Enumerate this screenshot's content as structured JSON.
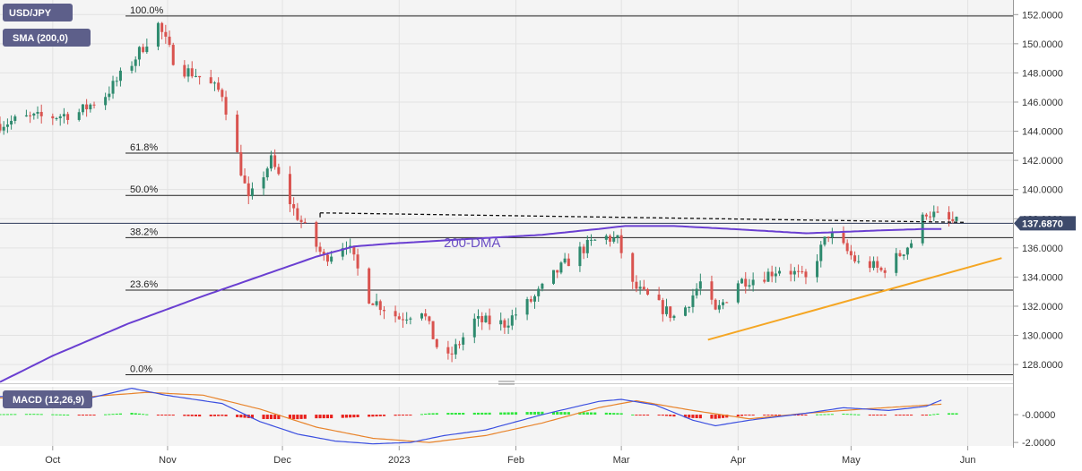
{
  "colors": {
    "bull": "#2e8a6e",
    "bear": "#d9534f",
    "sma": "#6a3fd1",
    "trend": "#f5a623",
    "fib": "#222222",
    "macd_line": "#3b4fe0",
    "signal_line": "#e8832a",
    "hist_pos": "#2ee63c",
    "hist_neg": "#e8201c",
    "badge": "#5d5f8a",
    "price_tag": "#3d4a6b",
    "panel_bg": "#f4f4f4"
  },
  "badges": {
    "symbol": "USD/JPY",
    "sma": "SMA (200,0)",
    "macd": "MACD (12,26,9)"
  },
  "price_tag": "137.6870",
  "dma_label": "200-DMA",
  "chart_data": [
    {
      "type": "candlestick",
      "y_ticks": [
        "152.0000",
        "150.0000",
        "148.0000",
        "146.0000",
        "144.0000",
        "142.0000",
        "140.0000",
        "138.0000",
        "136.0000",
        "134.0000",
        "132.0000",
        "130.0000",
        "128.0000"
      ],
      "y_tick_values": [
        152,
        150,
        148,
        146,
        144,
        142,
        140,
        138,
        136,
        134,
        132,
        130,
        128
      ],
      "ylim": [
        126.9,
        153.0
      ],
      "x_months": [
        "Oct",
        "Nov",
        "Dec",
        "2023",
        "Feb",
        "Mar",
        "Apr",
        "May",
        "Jun"
      ],
      "x_month_days": [
        0,
        30.5,
        61,
        92,
        123,
        151,
        182,
        212,
        243
      ],
      "xlim": [
        -14,
        255
      ],
      "fib_levels": [
        {
          "label": "100.0%",
          "value": 151.9
        },
        {
          "label": "61.8%",
          "value": 142.5
        },
        {
          "label": "50.0%",
          "value": 139.6
        },
        {
          "label": "38.2%",
          "value": 136.7
        },
        {
          "label": "23.6%",
          "value": 133.1
        },
        {
          "label": "0.0%",
          "value": 127.3
        }
      ],
      "current_price": 137.687,
      "resistance": {
        "from_day": 71,
        "from": 138.4,
        "to_day": 242,
        "to": 137.75
      },
      "support_trend": {
        "from_day": 174,
        "from": 129.7,
        "to_day": 252,
        "to": 135.3
      },
      "price_path_days": [
        -14,
        -7,
        0,
        7,
        14,
        21,
        28,
        33,
        38,
        45,
        52,
        58,
        64,
        72,
        78,
        84,
        92,
        98,
        104,
        112,
        120,
        128,
        134,
        140,
        146,
        150,
        154,
        160,
        166,
        172,
        176,
        182,
        188,
        194,
        200,
        206,
        210,
        214,
        216,
        220,
        224,
        228,
        232,
        236,
        240
      ],
      "price_path_values": [
        144.5,
        144.9,
        145.0,
        145.3,
        146.5,
        148.7,
        151.3,
        148.4,
        147.9,
        146.6,
        139.2,
        142.0,
        138.6,
        135.3,
        136.4,
        132.6,
        131.2,
        131.8,
        128.0,
        131.0,
        130.8,
        132.6,
        134.4,
        135.8,
        136.8,
        136.5,
        133.4,
        132.2,
        131.1,
        133.6,
        131.5,
        133.7,
        134.0,
        134.7,
        133.8,
        137.0,
        136.0,
        134.9,
        135.0,
        134.4,
        135.3,
        136.4,
        138.5,
        138.0,
        137.69
      ],
      "sma_days": [
        -14,
        0,
        20,
        40,
        60,
        70,
        80,
        90,
        110,
        130,
        145,
        152,
        165,
        180,
        200,
        220,
        232,
        236
      ],
      "sma_values": [
        126.8,
        128.6,
        130.8,
        132.7,
        134.5,
        135.4,
        136.1,
        136.3,
        136.6,
        136.9,
        137.3,
        137.5,
        137.5,
        137.3,
        137.0,
        137.2,
        137.3,
        137.3
      ]
    },
    {
      "type": "macd",
      "y_ticks": [
        "-0.0000",
        "-2.0000"
      ],
      "y_tick_values": [
        0,
        -2
      ],
      "ylim": [
        -2.25,
        2.0
      ],
      "macd_days": [
        -14,
        -5,
        10,
        21,
        30,
        45,
        55,
        65,
        75,
        85,
        95,
        104,
        115,
        130,
        145,
        151,
        160,
        170,
        176,
        185,
        200,
        210,
        222,
        232,
        236
      ],
      "macd_values": [
        1.3,
        1.4,
        1.2,
        1.9,
        1.4,
        0.8,
        -0.5,
        -1.4,
        -1.9,
        -2.1,
        -2.0,
        -1.5,
        -1.1,
        0.0,
        0.95,
        1.1,
        0.7,
        -0.4,
        -0.8,
        -0.4,
        0.1,
        0.5,
        0.3,
        0.6,
        1.05
      ],
      "signal_days": [
        -14,
        10,
        25,
        40,
        55,
        70,
        85,
        100,
        115,
        130,
        145,
        155,
        170,
        185,
        200,
        215,
        236
      ],
      "signal_values": [
        1.2,
        1.3,
        1.6,
        1.4,
        0.4,
        -0.9,
        -1.7,
        -2.0,
        -1.5,
        -0.6,
        0.5,
        1.0,
        0.3,
        -0.3,
        0.1,
        0.4,
        0.75
      ]
    }
  ]
}
